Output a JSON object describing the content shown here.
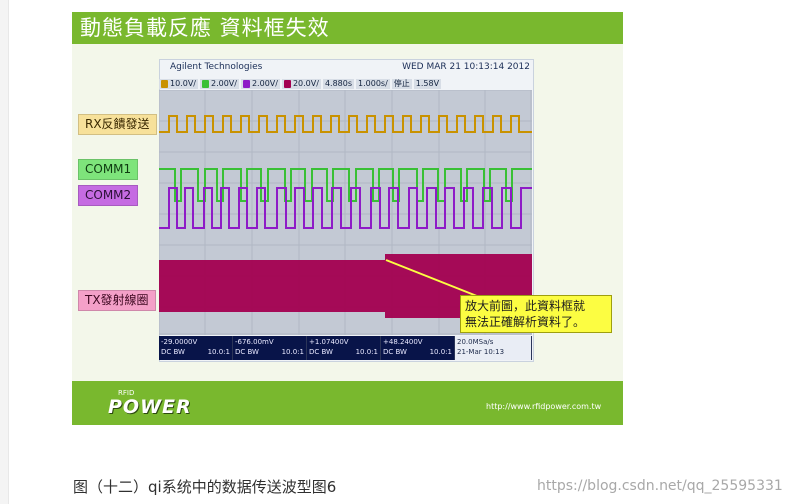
{
  "slide": {
    "title": "動態負載反應  資料框失效",
    "brand_small": "RFID",
    "brand": "POWER",
    "site": "http://www.rfidpower.com.tw"
  },
  "scope": {
    "logo": "Agilent Technologies",
    "timestamp": "WED MAR 21 10:13:14 2012",
    "status": [
      {
        "id": "1",
        "value": "10.0V/"
      },
      {
        "id": "2",
        "value": "2.00V/"
      },
      {
        "id": "3",
        "value": "2.00V/"
      },
      {
        "id": "4",
        "value": "20.0V/"
      },
      {
        "id": "trigger",
        "value": "4.880s"
      },
      {
        "id": "time_div",
        "value": "1.000s/"
      },
      {
        "id": "state",
        "value": "停止"
      },
      {
        "id": "trig_level",
        "value": "1.58V"
      }
    ],
    "labels": {
      "rx": "RX反饋發送",
      "comm1": "COMM1",
      "comm2": "COMM2",
      "tx": "TX發射線圈"
    },
    "callout_line1": "放大前圖，此資料框就",
    "callout_line2": "無法正確解析資料了。",
    "readouts": [
      {
        "value": "-29.0000V",
        "line2_left": "DC BW",
        "line2_right": "10.0:1"
      },
      {
        "value": "-676.00mV",
        "line2_left": "DC BW",
        "line2_right": "10.0:1"
      },
      {
        "value": "+1.07400V",
        "line2_left": "DC BW",
        "line2_right": "10.0:1"
      },
      {
        "value": "+48.2400V",
        "line2_left": "DC BW",
        "line2_right": "10.0:1"
      }
    ],
    "sample_rate": "20.0MSa/s",
    "date_time": "21-Mar 10:13"
  },
  "caption": "图（十二）qi系统中的数据传送波型图6",
  "watermark": "https://blog.csdn.net/qq_25595331",
  "colors": {
    "green_header": "#79b82e",
    "scope_bg": "#c3c9d4",
    "rx": "#c99200",
    "comm1": "#39c035",
    "comm2": "#8e1bc7",
    "tx": "#a30050",
    "callout": "#fcfd42"
  }
}
